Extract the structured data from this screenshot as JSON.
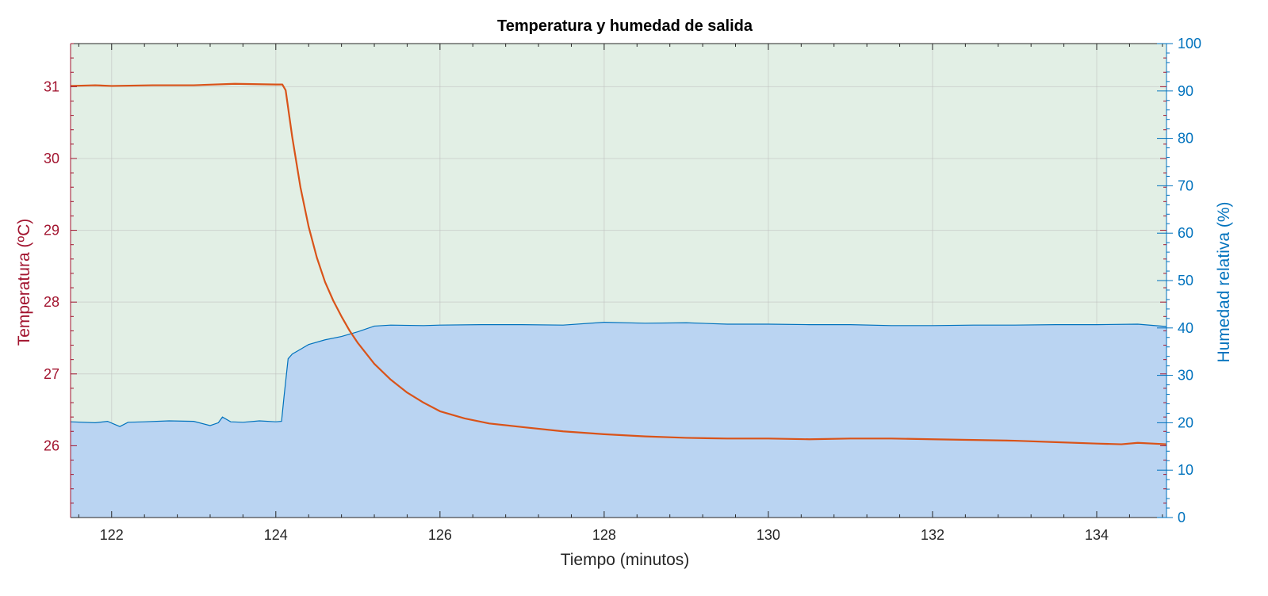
{
  "chart_data": {
    "type": "line",
    "title": "Temperatura y humedad de salida",
    "xlabel": "Tiempo (minutos)",
    "ylabel_left": "Temperatura (ºC)",
    "ylabel_right": "Humedad relativa (%)",
    "xlim": [
      121.5,
      134.85
    ],
    "ylim_left": [
      25,
      31.6
    ],
    "ylim_right": [
      0,
      100
    ],
    "x_ticks": [
      "122",
      "124",
      "126",
      "128",
      "130",
      "132",
      "134"
    ],
    "y_left_ticks": [
      "26",
      "27",
      "28",
      "29",
      "30",
      "31"
    ],
    "y_right_ticks": [
      "0",
      "10",
      "20",
      "30",
      "40",
      "50",
      "60",
      "70",
      "80",
      "90",
      "100"
    ],
    "grid": true,
    "colors": {
      "temperature_line": "#D95319",
      "humidity_line": "#0072BD",
      "humidity_fill": "#BAD4F2",
      "background_fill": "#E2EFE5",
      "left_axis": "#A2142F",
      "right_axis": "#0072BD"
    },
    "series": [
      {
        "axis": "left",
        "x": [
          121.5,
          121.8,
          122.0,
          122.5,
          123.0,
          123.5,
          124.0,
          124.08,
          124.12,
          124.2,
          124.3,
          124.4,
          124.5,
          124.6,
          124.7,
          124.8,
          124.9,
          125.0,
          125.2,
          125.4,
          125.6,
          125.8,
          126.0,
          126.3,
          126.6,
          127.0,
          127.5,
          128.0,
          128.5,
          129.0,
          129.5,
          130.0,
          130.5,
          131.0,
          131.5,
          132.0,
          132.5,
          133.0,
          133.5,
          134.0,
          134.3,
          134.5,
          134.85
        ],
        "y": [
          31.01,
          31.02,
          31.01,
          31.02,
          31.02,
          31.04,
          31.03,
          31.03,
          30.95,
          30.3,
          29.6,
          29.05,
          28.62,
          28.28,
          28.02,
          27.8,
          27.6,
          27.43,
          27.14,
          26.92,
          26.74,
          26.6,
          26.48,
          26.38,
          26.31,
          26.26,
          26.2,
          26.16,
          26.13,
          26.11,
          26.1,
          26.1,
          26.09,
          26.1,
          26.1,
          26.09,
          26.08,
          26.07,
          26.05,
          26.03,
          26.02,
          26.04,
          26.02
        ]
      },
      {
        "axis": "right",
        "fill": true,
        "x": [
          121.5,
          121.8,
          121.95,
          122.1,
          122.2,
          122.4,
          122.7,
          123.0,
          123.2,
          123.3,
          123.35,
          123.45,
          123.6,
          123.8,
          124.0,
          124.07,
          124.1,
          124.15,
          124.2,
          124.3,
          124.4,
          124.6,
          124.8,
          125.0,
          125.2,
          125.4,
          125.8,
          126.0,
          126.5,
          127.0,
          127.5,
          128.0,
          128.5,
          129.0,
          129.5,
          130.0,
          130.5,
          131.0,
          131.5,
          132.0,
          132.5,
          133.0,
          133.5,
          134.0,
          134.5,
          134.85
        ],
        "y": [
          20.2,
          20.0,
          20.3,
          19.2,
          20.1,
          20.2,
          20.4,
          20.3,
          19.4,
          20.0,
          21.2,
          20.2,
          20.1,
          20.4,
          20.2,
          20.3,
          25.5,
          33.5,
          34.5,
          35.5,
          36.5,
          37.5,
          38.2,
          39.2,
          40.4,
          40.6,
          40.5,
          40.6,
          40.7,
          40.7,
          40.6,
          41.2,
          41.0,
          41.1,
          40.8,
          40.8,
          40.7,
          40.7,
          40.5,
          40.5,
          40.6,
          40.6,
          40.7,
          40.7,
          40.8,
          40.3
        ]
      }
    ]
  }
}
